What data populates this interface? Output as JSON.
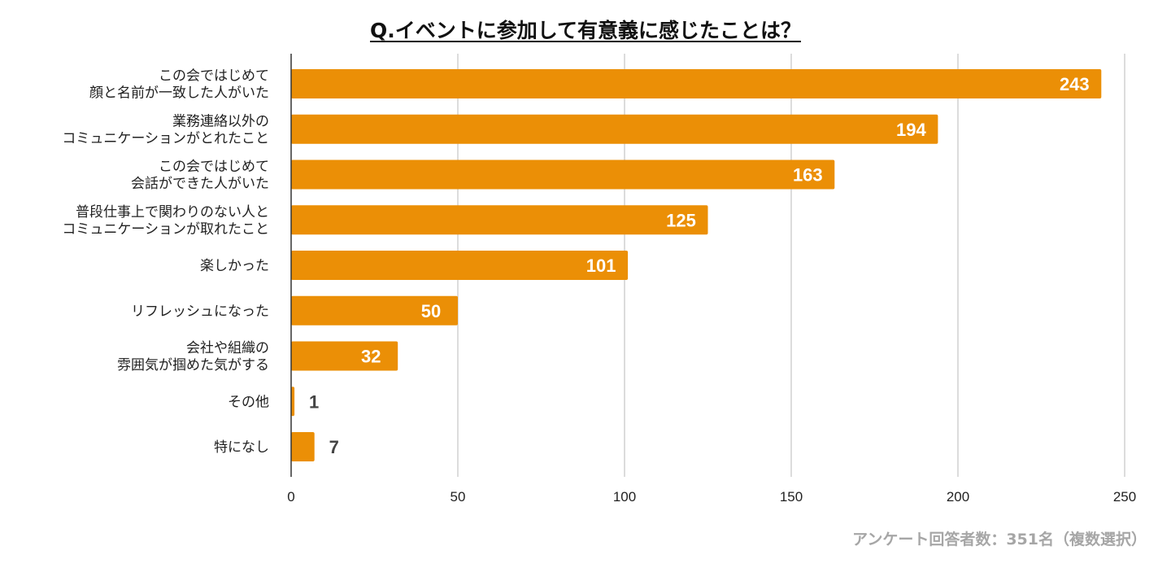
{
  "chart_data": {
    "type": "bar",
    "orientation": "horizontal",
    "title": "Q.イベントに参加して有意義に感じたことは？",
    "categories": [
      [
        "この会ではじめて",
        "顔と名前が一致した人がいた"
      ],
      [
        "業務連絡以外の",
        "コミュニケーションがとれたこと"
      ],
      [
        "この会ではじめて",
        "会話ができた人がいた"
      ],
      [
        "普段仕事上で関わりのない人と",
        "コミュニケーションが取れたこと"
      ],
      [
        "楽しかった"
      ],
      [
        "リフレッシュになった"
      ],
      [
        "会社や組織の",
        "雰囲気が掴めた気がする"
      ],
      [
        "その他"
      ],
      [
        "特になし"
      ]
    ],
    "values": [
      243,
      194,
      163,
      125,
      101,
      50,
      32,
      1,
      7
    ],
    "xlim": [
      0,
      250
    ],
    "xticks": [
      "0",
      "50",
      "100",
      "150",
      "200",
      "250"
    ],
    "xtick_values": [
      0,
      50,
      100,
      150,
      200,
      250
    ],
    "xlabel": "",
    "ylabel": "",
    "grid": true,
    "bar_color": "#EB8F06",
    "inside_label_color": "#ffffff",
    "outside_label_color": "#444444",
    "gridline_color": "#d0d0d0",
    "footnote": "アンケート回答者数：351名（複数選択）"
  }
}
